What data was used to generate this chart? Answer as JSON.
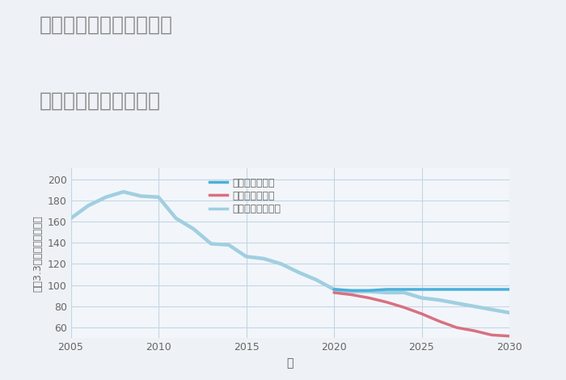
{
  "title_line1": "愛知県瀬戸市みずの坂の",
  "title_line2": "中古戸建ての価格推移",
  "xlabel": "年",
  "ylabel": "坪（3.3㎡）単価（万円）",
  "bg_color": "#eef2f6",
  "plot_bg_color": "#f2f6fa",
  "grid_color": "#c5d5e5",
  "title_color": "#888888",
  "tick_color": "#666666",
  "xlabel_color": "#555555",
  "ylabel_color": "#666666",
  "ylim": [
    50,
    210
  ],
  "yticks": [
    60,
    80,
    100,
    120,
    140,
    160,
    180,
    200
  ],
  "xlim": [
    2005,
    2030
  ],
  "xticks": [
    2005,
    2010,
    2015,
    2020,
    2025,
    2030
  ],
  "normal_scenario": {
    "label": "ノーマルシナリオ",
    "color": "#a0cfe0",
    "linewidth": 3.2,
    "x": [
      2005,
      2006,
      2007,
      2008,
      2009,
      2010,
      2011,
      2012,
      2013,
      2014,
      2015,
      2016,
      2017,
      2018,
      2019,
      2020,
      2021,
      2022,
      2023,
      2024,
      2025,
      2026,
      2027,
      2028,
      2029,
      2030
    ],
    "y": [
      163,
      175,
      183,
      188,
      184,
      183,
      163,
      153,
      139,
      138,
      127,
      125,
      120,
      112,
      105,
      96,
      94,
      94,
      93,
      93,
      88,
      86,
      83,
      80,
      77,
      74
    ]
  },
  "good_scenario": {
    "label": "グッドシナリオ",
    "color": "#4aafda",
    "linewidth": 2.5,
    "x": [
      2020,
      2021,
      2022,
      2023,
      2024,
      2025,
      2026,
      2027,
      2028,
      2029,
      2030
    ],
    "y": [
      96,
      95,
      95,
      96,
      96,
      96,
      96,
      96,
      96,
      96,
      96
    ]
  },
  "bad_scenario": {
    "label": "バッドシナリオ",
    "color": "#d97080",
    "linewidth": 2.5,
    "x": [
      2020,
      2021,
      2022,
      2023,
      2024,
      2025,
      2026,
      2027,
      2028,
      2029,
      2030
    ],
    "y": [
      93,
      91,
      88,
      84,
      79,
      73,
      66,
      60,
      57,
      53,
      52
    ]
  },
  "legend_labels": [
    "グッドシナリオ",
    "バッドシナリオ",
    "ノーマルシナリオ"
  ],
  "legend_colors": [
    "#4aafda",
    "#d97080",
    "#a0cfe0"
  ]
}
